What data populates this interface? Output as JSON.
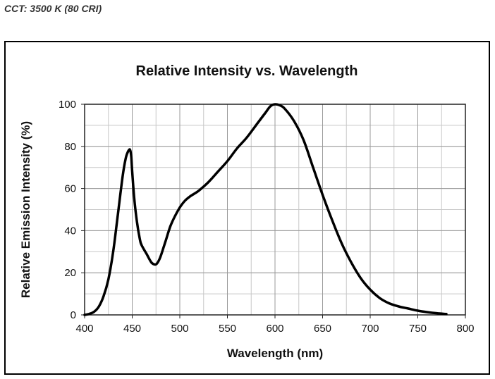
{
  "caption": "CCT: 3500 K (80 CRI)",
  "chart_data": {
    "type": "line",
    "title": "Relative Intensity vs. Wavelength",
    "xlabel": "Wavelength (nm)",
    "ylabel": "Relative Emission Intensity (%)",
    "xlim": [
      400,
      800
    ],
    "ylim": [
      0,
      100
    ],
    "xticks": [
      400,
      450,
      500,
      550,
      600,
      650,
      700,
      750,
      800
    ],
    "yticks": [
      0,
      20,
      40,
      60,
      80,
      100
    ],
    "x_minor_step": 25,
    "y_minor_step": 10,
    "grid": true,
    "legend": "none",
    "line_color": "#000000",
    "series": [
      {
        "x": [
          400,
          405,
          410,
          415,
          420,
          425,
          430,
          435,
          440,
          443,
          445,
          447,
          448,
          449,
          450,
          452,
          455,
          458,
          460,
          465,
          470,
          473,
          475,
          477,
          480,
          485,
          490,
          495,
          500,
          505,
          510,
          515,
          520,
          530,
          540,
          550,
          560,
          570,
          580,
          590,
          595,
          600,
          605,
          610,
          620,
          630,
          640,
          650,
          660,
          670,
          680,
          690,
          700,
          710,
          720,
          730,
          740,
          750,
          760,
          770,
          780
        ],
        "y": [
          0,
          0.5,
          1.5,
          4,
          9,
          17,
          30,
          48,
          66,
          74,
          77,
          78.5,
          78,
          75,
          68,
          56,
          44,
          36,
          33,
          29,
          25,
          24,
          24,
          25,
          28,
          35,
          42,
          47,
          51,
          54,
          56,
          57.5,
          59,
          63,
          68,
          73,
          79,
          84,
          90,
          96,
          99,
          100,
          99.5,
          98,
          92,
          83,
          70,
          57,
          45,
          34,
          25,
          17.5,
          12,
          8,
          5.5,
          4,
          3,
          2,
          1.3,
          0.8,
          0.4
        ]
      }
    ]
  }
}
